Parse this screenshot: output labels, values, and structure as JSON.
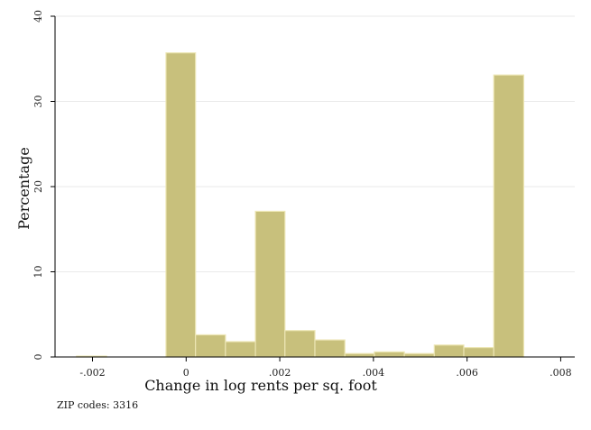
{
  "chart_data": {
    "type": "bar",
    "title": "",
    "xlabel": "Change in log rents per sq. foot",
    "ylabel": "Percentage",
    "note": "ZIP codes: 3316",
    "xlim": [
      -0.0028,
      0.0083
    ],
    "ylim": [
      0,
      40
    ],
    "x_ticks": [
      {
        "value": -0.002,
        "label": "-.002"
      },
      {
        "value": 0,
        "label": "0"
      },
      {
        "value": 0.002,
        "label": ".002"
      },
      {
        "value": 0.004,
        "label": ".004"
      },
      {
        "value": 0.006,
        "label": ".006"
      },
      {
        "value": 0.008,
        "label": ".008"
      }
    ],
    "y_ticks": [
      {
        "value": 0,
        "label": "0"
      },
      {
        "value": 10,
        "label": "10"
      },
      {
        "value": 20,
        "label": "20"
      },
      {
        "value": 30,
        "label": "30"
      },
      {
        "value": 40,
        "label": "40"
      }
    ],
    "grid": true,
    "bar_fill": "#c8c07c",
    "bar_stroke": "#ece6b4",
    "grid_color": "#eaeaea",
    "bins": [
      {
        "x0": -0.00234,
        "x1": -0.0017,
        "value": 0.1
      },
      {
        "x0": -0.0017,
        "x1": -0.00107,
        "value": 0
      },
      {
        "x0": -0.00107,
        "x1": -0.00043,
        "value": 0
      },
      {
        "x0": -0.00043,
        "x1": 0.0002,
        "value": 35.7
      },
      {
        "x0": 0.0002,
        "x1": 0.00084,
        "value": 2.6
      },
      {
        "x0": 0.00084,
        "x1": 0.00148,
        "value": 1.8
      },
      {
        "x0": 0.00148,
        "x1": 0.00211,
        "value": 17.1
      },
      {
        "x0": 0.00211,
        "x1": 0.00275,
        "value": 3.1
      },
      {
        "x0": 0.00275,
        "x1": 0.00339,
        "value": 2.0
      },
      {
        "x0": 0.00339,
        "x1": 0.00402,
        "value": 0.4
      },
      {
        "x0": 0.00402,
        "x1": 0.00466,
        "value": 0.6
      },
      {
        "x0": 0.00466,
        "x1": 0.0053,
        "value": 0.4
      },
      {
        "x0": 0.0053,
        "x1": 0.00593,
        "value": 1.4
      },
      {
        "x0": 0.00593,
        "x1": 0.00657,
        "value": 1.1
      },
      {
        "x0": 0.00657,
        "x1": 0.00721,
        "value": 33.1
      }
    ]
  }
}
